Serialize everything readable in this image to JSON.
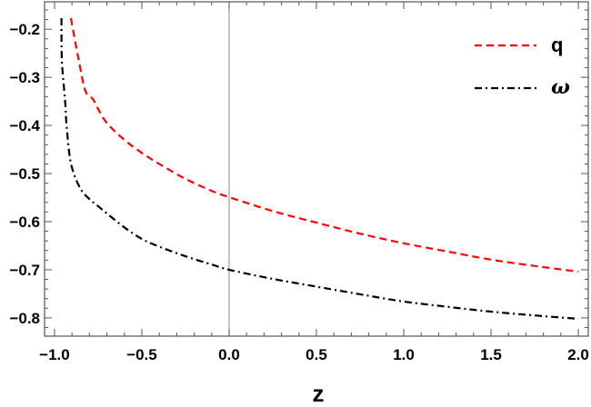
{
  "chart_data": {
    "type": "line",
    "title": "",
    "xlabel": "z",
    "ylabel": "",
    "xlim": [
      -1.057,
      2.057
    ],
    "ylim": [
      -0.838,
      -0.143
    ],
    "grid": false,
    "legend_position": "upper right (inside)",
    "x_ticks": [
      -1.0,
      -0.5,
      0.0,
      0.5,
      1.0,
      1.5,
      2.0
    ],
    "x_tick_labels": [
      "−1.0",
      "−0.5",
      "0.0",
      "0.5",
      "1.0",
      "1.5",
      "2.0"
    ],
    "y_ticks": [
      -0.2,
      -0.3,
      -0.4,
      -0.5,
      -0.6,
      -0.7,
      -0.8
    ],
    "y_tick_labels": [
      "−0.2",
      "−0.3",
      "−0.4",
      "−0.5",
      "−0.6",
      "−0.7",
      "−0.8"
    ],
    "annotations": [
      {
        "type": "vertical-line",
        "x": 0.0,
        "color": "#888888"
      }
    ],
    "series": [
      {
        "name": "q",
        "color": "#ff0000",
        "dash": "dashed",
        "x": [
          -0.906,
          -0.865,
          -0.823,
          -0.78,
          -0.75,
          -0.7,
          -0.6,
          -0.5,
          -0.4,
          -0.25,
          -0.1,
          0.0,
          0.25,
          0.5,
          0.75,
          1.0,
          1.25,
          1.5,
          1.75,
          2.0
        ],
        "y": [
          -0.177,
          -0.257,
          -0.328,
          -0.345,
          -0.366,
          -0.395,
          -0.43,
          -0.457,
          -0.48,
          -0.511,
          -0.536,
          -0.549,
          -0.578,
          -0.602,
          -0.625,
          -0.645,
          -0.662,
          -0.679,
          -0.692,
          -0.704
        ]
      },
      {
        "name": "ω",
        "color": "#000000",
        "dash": "dash-dot",
        "x": [
          -0.96,
          -0.958,
          -0.94,
          -0.93,
          -0.906,
          -0.854,
          -0.8,
          -0.75,
          -0.7,
          -0.6,
          -0.5,
          -0.4,
          -0.25,
          -0.1,
          0.0,
          0.25,
          0.5,
          0.75,
          1.0,
          1.25,
          1.5,
          1.75,
          2.0
        ],
        "y": [
          -0.177,
          -0.264,
          -0.347,
          -0.404,
          -0.479,
          -0.53,
          -0.553,
          -0.568,
          -0.583,
          -0.612,
          -0.636,
          -0.652,
          -0.672,
          -0.689,
          -0.7,
          -0.719,
          -0.735,
          -0.751,
          -0.766,
          -0.777,
          -0.787,
          -0.795,
          -0.802
        ]
      }
    ]
  },
  "axes": {
    "x_title": "z"
  },
  "legend": {
    "items": [
      {
        "label": "q",
        "color": "#ff0000",
        "style": "dashed"
      },
      {
        "label": "ω",
        "color": "#000000",
        "style": "dash-dot"
      }
    ]
  },
  "colors": {
    "frame": "#555555",
    "zero_line": "#888888",
    "q": "#ff0000",
    "omega": "#000000"
  }
}
